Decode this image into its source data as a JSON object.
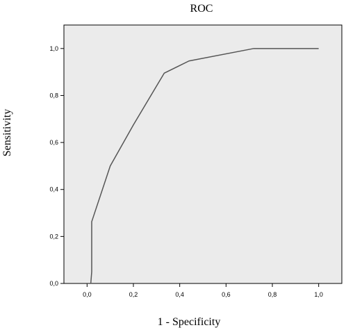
{
  "chart_data": {
    "type": "line",
    "title": "ROC",
    "xlabel": "1 - Specificity",
    "ylabel": "Sensitivity",
    "xlim": [
      -0.1,
      1.1
    ],
    "ylim": [
      0,
      1.1
    ],
    "x_ticks": [
      0.0,
      0.2,
      0.4,
      0.6,
      0.8,
      1.0
    ],
    "x_tick_labels": [
      "0,0",
      "0,2",
      "0,4",
      "0,6",
      "0,8",
      "1,0"
    ],
    "y_ticks": [
      0.0,
      0.2,
      0.4,
      0.6,
      0.8,
      1.0
    ],
    "y_tick_labels": [
      "0,0",
      "0,2",
      "0,4",
      "0,6",
      "0,8",
      "1,0"
    ],
    "grid": false,
    "series": [
      {
        "color": "#555555",
        "x": [
          0.0,
          0.016,
          0.02,
          0.02,
          0.1,
          0.2,
          0.333,
          0.44,
          0.72,
          1.0
        ],
        "y": [
          0.0,
          0.0,
          0.05,
          0.263,
          0.5,
          0.675,
          0.895,
          0.947,
          1.0,
          1.0
        ]
      }
    ]
  }
}
